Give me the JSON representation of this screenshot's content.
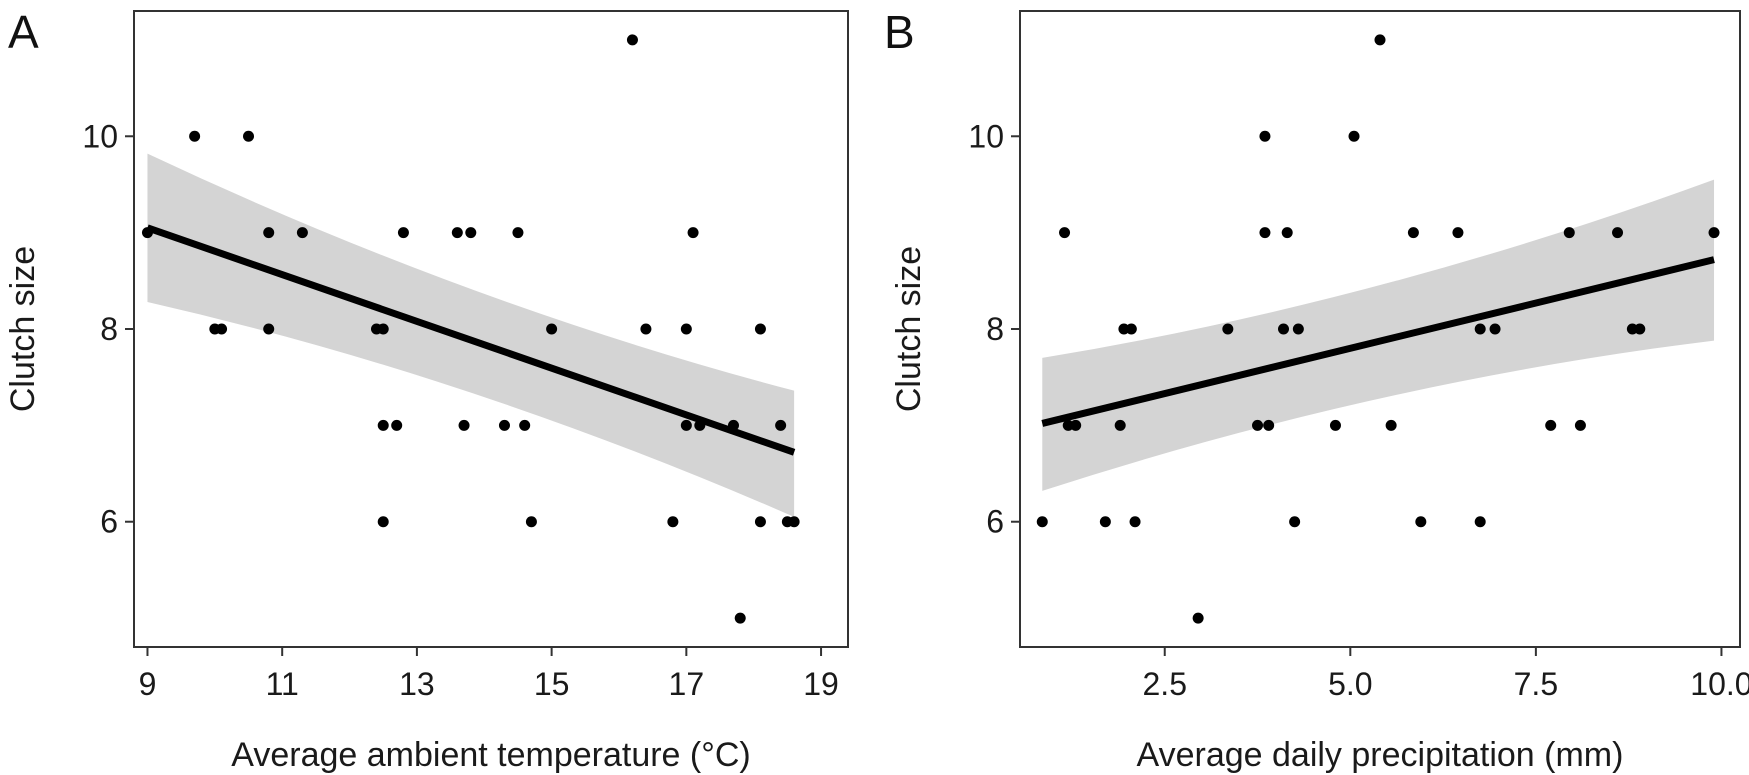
{
  "chart_data": [
    {
      "panel": "A",
      "type": "scatter",
      "xlabel": "Average ambient temperature (°C)",
      "ylabel": "Clutch size",
      "xlim": [
        8.8,
        19.4
      ],
      "ylim": [
        4.7,
        11.3
      ],
      "xticks": [
        9,
        11,
        13,
        15,
        17,
        19
      ],
      "xtick_labels": [
        "9",
        "11",
        "13",
        "15",
        "17",
        "19"
      ],
      "yticks": [
        6,
        8,
        10
      ],
      "ytick_labels": [
        "6",
        "8",
        "10"
      ],
      "grid": false,
      "points": [
        {
          "x": 9.0,
          "y": 9
        },
        {
          "x": 9.7,
          "y": 10
        },
        {
          "x": 10.0,
          "y": 8
        },
        {
          "x": 10.1,
          "y": 8
        },
        {
          "x": 10.5,
          "y": 10
        },
        {
          "x": 10.8,
          "y": 8
        },
        {
          "x": 10.8,
          "y": 9
        },
        {
          "x": 11.3,
          "y": 9
        },
        {
          "x": 12.4,
          "y": 8
        },
        {
          "x": 12.5,
          "y": 7
        },
        {
          "x": 12.5,
          "y": 6
        },
        {
          "x": 12.5,
          "y": 8
        },
        {
          "x": 12.7,
          "y": 7
        },
        {
          "x": 12.8,
          "y": 9
        },
        {
          "x": 13.6,
          "y": 9
        },
        {
          "x": 13.7,
          "y": 7
        },
        {
          "x": 13.8,
          "y": 9
        },
        {
          "x": 14.3,
          "y": 7
        },
        {
          "x": 14.5,
          "y": 9
        },
        {
          "x": 14.6,
          "y": 7
        },
        {
          "x": 14.7,
          "y": 6
        },
        {
          "x": 15.0,
          "y": 8
        },
        {
          "x": 16.2,
          "y": 11
        },
        {
          "x": 16.4,
          "y": 8
        },
        {
          "x": 16.8,
          "y": 6
        },
        {
          "x": 17.0,
          "y": 8
        },
        {
          "x": 17.0,
          "y": 7
        },
        {
          "x": 17.1,
          "y": 9
        },
        {
          "x": 17.2,
          "y": 7
        },
        {
          "x": 17.7,
          "y": 7
        },
        {
          "x": 17.8,
          "y": 5
        },
        {
          "x": 18.1,
          "y": 8
        },
        {
          "x": 18.1,
          "y": 6
        },
        {
          "x": 18.4,
          "y": 7
        },
        {
          "x": 18.5,
          "y": 6
        },
        {
          "x": 18.6,
          "y": 6
        }
      ],
      "fit": {
        "x": [
          9.0,
          18.6
        ],
        "y": [
          9.05,
          6.72
        ],
        "ci_lower": [
          8.28,
          6.05
        ],
        "ci_upper": [
          9.82,
          7.36
        ]
      }
    },
    {
      "panel": "B",
      "type": "scatter",
      "xlabel": "Average daily precipitation (mm)",
      "ylabel": "Clutch size",
      "xlim": [
        0.55,
        10.25
      ],
      "ylim": [
        4.7,
        11.3
      ],
      "xticks": [
        2.5,
        5.0,
        7.5,
        10.0
      ],
      "xtick_labels": [
        "2.5",
        "5.0",
        "7.5",
        "10.0"
      ],
      "yticks": [
        6,
        8,
        10
      ],
      "ytick_labels": [
        "6",
        "8",
        "10"
      ],
      "grid": false,
      "points": [
        {
          "x": 0.85,
          "y": 6
        },
        {
          "x": 1.15,
          "y": 9
        },
        {
          "x": 1.2,
          "y": 7
        },
        {
          "x": 1.3,
          "y": 7
        },
        {
          "x": 1.7,
          "y": 6
        },
        {
          "x": 1.9,
          "y": 7
        },
        {
          "x": 1.95,
          "y": 8
        },
        {
          "x": 2.05,
          "y": 8
        },
        {
          "x": 2.1,
          "y": 6
        },
        {
          "x": 2.95,
          "y": 5
        },
        {
          "x": 3.35,
          "y": 8
        },
        {
          "x": 3.75,
          "y": 7
        },
        {
          "x": 3.85,
          "y": 9
        },
        {
          "x": 3.85,
          "y": 10
        },
        {
          "x": 3.9,
          "y": 7
        },
        {
          "x": 4.1,
          "y": 8
        },
        {
          "x": 4.15,
          "y": 9
        },
        {
          "x": 4.25,
          "y": 6
        },
        {
          "x": 4.3,
          "y": 8
        },
        {
          "x": 4.8,
          "y": 7
        },
        {
          "x": 5.05,
          "y": 10
        },
        {
          "x": 5.4,
          "y": 11
        },
        {
          "x": 5.55,
          "y": 7
        },
        {
          "x": 5.85,
          "y": 9
        },
        {
          "x": 5.95,
          "y": 6
        },
        {
          "x": 6.45,
          "y": 9
        },
        {
          "x": 6.75,
          "y": 8
        },
        {
          "x": 6.75,
          "y": 6
        },
        {
          "x": 6.95,
          "y": 8
        },
        {
          "x": 7.7,
          "y": 7
        },
        {
          "x": 7.95,
          "y": 9
        },
        {
          "x": 8.1,
          "y": 7
        },
        {
          "x": 8.6,
          "y": 9
        },
        {
          "x": 8.8,
          "y": 8
        },
        {
          "x": 8.9,
          "y": 8
        },
        {
          "x": 9.9,
          "y": 9
        }
      ],
      "fit": {
        "x": [
          0.85,
          9.9
        ],
        "y": [
          7.02,
          8.72
        ],
        "ci_lower": [
          6.32,
          7.88
        ],
        "ci_upper": [
          7.7,
          9.55
        ]
      }
    }
  ]
}
